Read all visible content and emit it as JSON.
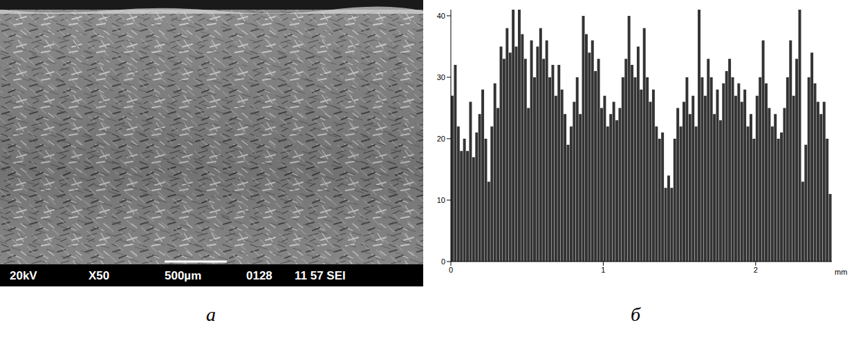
{
  "panel_labels": [
    "а",
    "б"
  ],
  "image_panel": {
    "info": [
      "20kV",
      "X50",
      "500µm",
      "0128",
      "11 57 SEI"
    ]
  },
  "chart_data": {
    "type": "bar",
    "x_label": "mm",
    "color": "#333333",
    "bins": [
      0,
      0.02,
      0.04,
      0.06,
      0.08,
      0.1,
      0.12,
      0.14,
      0.16,
      0.18,
      0.2,
      0.22,
      0.24,
      0.26,
      0.28,
      0.3,
      0.32,
      0.34,
      0.36,
      0.38,
      0.4,
      0.42,
      0.44,
      0.46,
      0.48,
      0.5,
      0.52,
      0.54,
      0.56,
      0.58,
      0.6,
      0.62,
      0.64,
      0.66,
      0.68,
      0.7,
      0.72,
      0.74,
      0.76,
      0.78,
      0.8,
      0.82,
      0.84,
      0.86,
      0.88,
      0.9,
      0.92,
      0.94,
      0.96,
      0.98,
      1,
      1.02,
      1.04,
      1.06,
      1.08,
      1.1,
      1.12,
      1.14,
      1.16,
      1.18,
      1.2,
      1.22,
      1.24,
      1.26,
      1.28,
      1.3,
      1.32,
      1.34,
      1.36,
      1.38,
      1.4,
      1.42,
      1.44,
      1.46,
      1.48,
      1.5,
      1.52,
      1.54,
      1.56,
      1.58,
      1.6,
      1.62,
      1.64,
      1.66,
      1.68,
      1.7,
      1.72,
      1.74,
      1.76,
      1.78,
      1.8,
      1.82,
      1.84,
      1.86,
      1.88,
      1.9,
      1.92,
      1.94,
      1.96,
      1.98,
      2,
      2.02,
      2.04,
      2.06,
      2.08,
      2.1,
      2.12,
      2.14,
      2.16,
      2.18,
      2.2,
      2.22,
      2.24,
      2.26,
      2.28,
      2.3,
      2.32,
      2.34,
      2.36,
      2.38,
      2.4,
      2.42,
      2.44,
      2.46,
      2.48,
      2.5
    ],
    "values": [
      27,
      32,
      22,
      18,
      20,
      18,
      26,
      17,
      21,
      24,
      28,
      20,
      13,
      22,
      29,
      25,
      35,
      33,
      38,
      34,
      41,
      35,
      41,
      37,
      33,
      25,
      36,
      30,
      35,
      38,
      33,
      36,
      30,
      32,
      27,
      32,
      28,
      24,
      19,
      22,
      26,
      30,
      24,
      40,
      37,
      34,
      36,
      31,
      33,
      25,
      27,
      22,
      24,
      26,
      23,
      25,
      30,
      33,
      40,
      32,
      30,
      35,
      28,
      38,
      30,
      26,
      28,
      22,
      20,
      21,
      12,
      14,
      12,
      20,
      25,
      22,
      26,
      30,
      24,
      27,
      22,
      41,
      30,
      27,
      33,
      30,
      24,
      28,
      23,
      29,
      31,
      33,
      30,
      27,
      29,
      26,
      28,
      22,
      24,
      20,
      27,
      30,
      36,
      29,
      25,
      22,
      24,
      20,
      21,
      25,
      30,
      36,
      27,
      33,
      41,
      13,
      19,
      30,
      34,
      29,
      26,
      24,
      26,
      20,
      11
    ],
    "xlim": [
      0,
      2.5
    ],
    "xticks": [
      0,
      1,
      2
    ],
    "ylim": [
      0,
      41
    ],
    "yticks": [
      0,
      10,
      20,
      30,
      40
    ],
    "grid": false
  }
}
